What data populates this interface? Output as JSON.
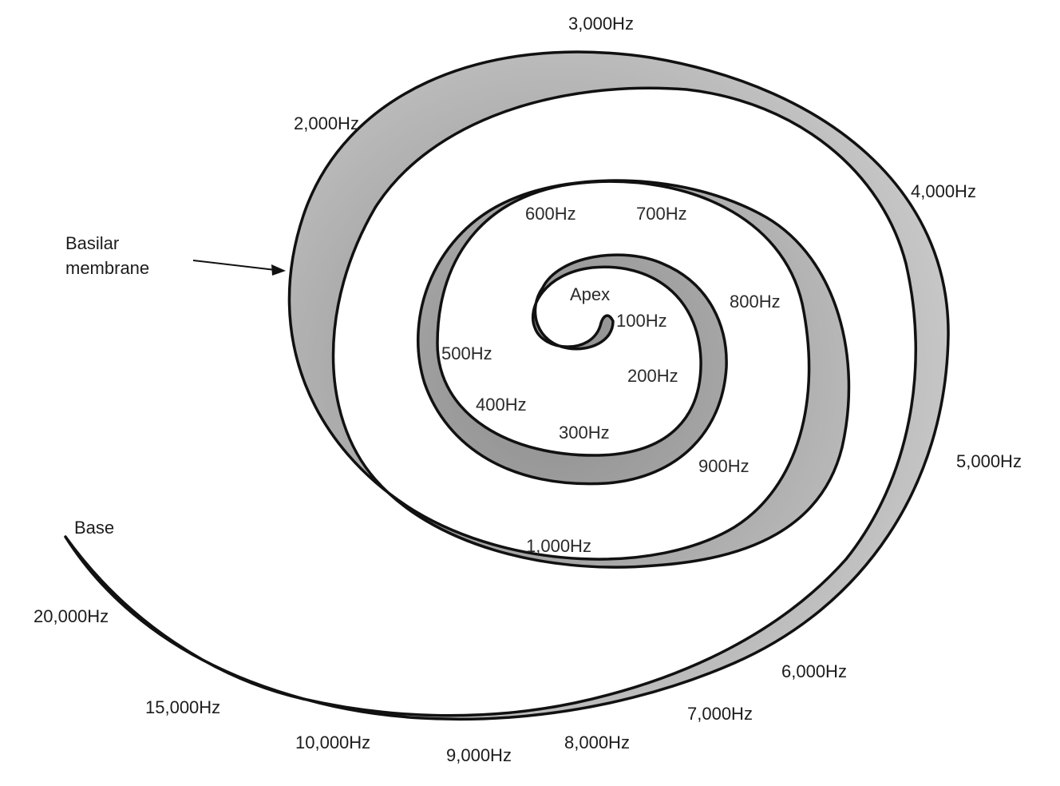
{
  "labels": {
    "basilar_membrane": "Basilar\nmembrane",
    "apex": "Apex",
    "base": "Base"
  },
  "frequencies": {
    "f100": "100Hz",
    "f200": "200Hz",
    "f300": "300Hz",
    "f400": "400Hz",
    "f500": "500Hz",
    "f600": "600Hz",
    "f700": "700Hz",
    "f800": "800Hz",
    "f900": "900Hz",
    "f1000": "1,000Hz",
    "f2000": "2,000Hz",
    "f3000": "3,000Hz",
    "f4000": "4,000Hz",
    "f5000": "5,000Hz",
    "f6000": "6,000Hz",
    "f7000": "7,000Hz",
    "f8000": "8,000Hz",
    "f9000": "9,000Hz",
    "f10000": "10,000Hz",
    "f15000": "15,000Hz",
    "f20000": "20,000Hz"
  },
  "colors": {
    "membrane_apex": "#8c8c8c",
    "membrane_middle": "#a9a9a9",
    "membrane_base": "#cdcdcd",
    "outline": "#111111"
  }
}
